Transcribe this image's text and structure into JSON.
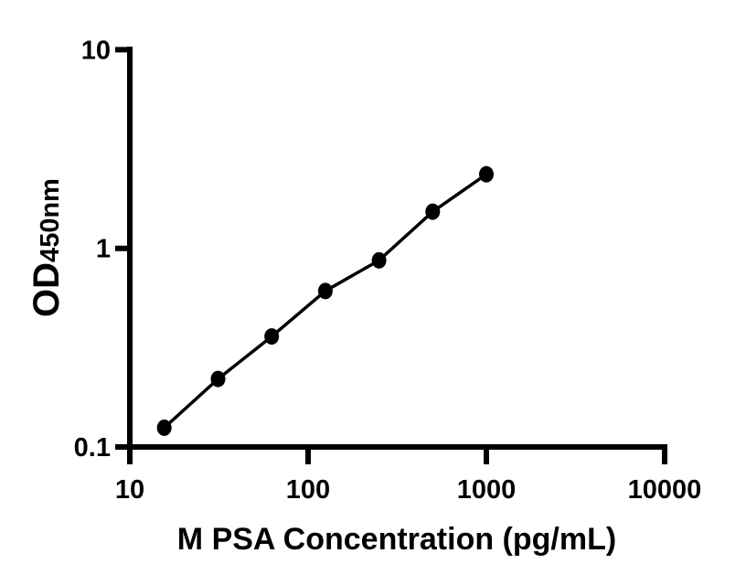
{
  "figure": {
    "background_color": "#ffffff",
    "ink_color": "#000000"
  },
  "chart_data": {
    "type": "line",
    "title": "",
    "xlabel": "M PSA Concentration (pg/mL)",
    "ylabel": {
      "main": "OD",
      "sub": "450nm",
      "combined": "OD450nm"
    },
    "x_scale": "log",
    "y_scale": "log",
    "xlim": [
      10,
      10000
    ],
    "ylim": [
      0.1,
      10
    ],
    "grid": false,
    "legend": "none",
    "x_ticks": [
      {
        "value": 10,
        "label": "10"
      },
      {
        "value": 100,
        "label": "100"
      },
      {
        "value": 1000,
        "label": "1000"
      },
      {
        "value": 10000,
        "label": "10000"
      }
    ],
    "y_ticks": [
      {
        "value": 0.1,
        "label": "0.1"
      },
      {
        "value": 1,
        "label": "1"
      },
      {
        "value": 10,
        "label": "10"
      }
    ],
    "series": [
      {
        "marker": "filled-circle",
        "color": "#000000",
        "points": [
          {
            "x": 15.6,
            "y": 0.125
          },
          {
            "x": 31.25,
            "y": 0.22
          },
          {
            "x": 62.5,
            "y": 0.36
          },
          {
            "x": 125,
            "y": 0.61
          },
          {
            "x": 250,
            "y": 0.87
          },
          {
            "x": 500,
            "y": 1.53
          },
          {
            "x": 1000,
            "y": 2.36
          }
        ]
      }
    ]
  }
}
